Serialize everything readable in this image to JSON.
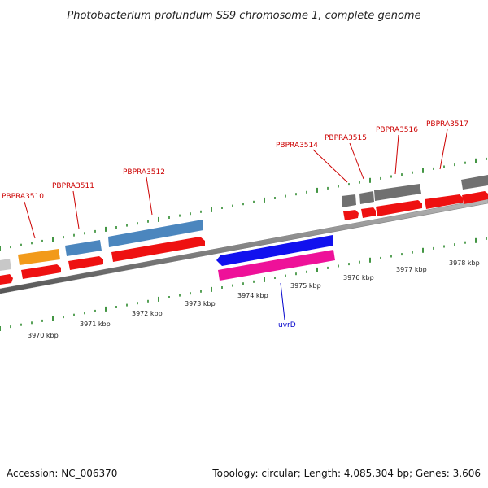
{
  "title": "Photobacterium profundum SS9 chromosome 1, complete genome",
  "footer": {
    "accession": "Accession: NC_006370",
    "summary": "Topology: circular; Length: 4,085,304 bp; Genes: 3,606"
  },
  "colors": {
    "axis": "#7f7f7f",
    "tick": "#2f8a2f",
    "forward_cds": "#ee1111",
    "reverse_cds": "#1111ee",
    "reverse_gene": "#ee1199",
    "label_red": "#cc0000",
    "label_blue": "#0000cc",
    "gray_feature": "#707070",
    "light_gray_feature": "#c8c8c8",
    "orange_feature": "#f29a1a",
    "steelblue_feature": "#4b86be"
  },
  "scale_labels": [
    "3970 kbp",
    "3971 kbp",
    "3972 kbp",
    "3973 kbp",
    "3974 kbp",
    "3975 kbp",
    "3976 kbp",
    "3977 kbp",
    "3978 kbp"
  ],
  "gene_labels": [
    "PBPRA3510",
    "PBPRA3511",
    "PBPRA3512",
    "PBPRA3514",
    "PBPRA3515",
    "PBPRA3516",
    "PBPRA3517",
    "uvrD"
  ]
}
